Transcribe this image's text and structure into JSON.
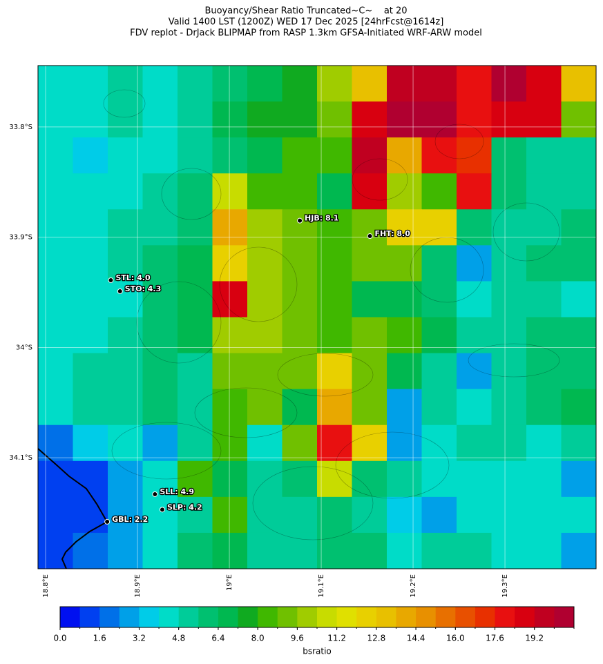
{
  "chart_data": {
    "type": "heatmap",
    "title": "Buoyancy/Shear Ratio Truncated~C~    at 20",
    "subtitle": "Valid 1400 LST (1200Z) WED 17 Dec 2025 [24hrFcst@1614z]",
    "subtitle2": "FDV replot - DrJack BLIPMAP from RASP 1.3km GFSA-Initiated WRF-ARW model",
    "xlim": [
      18.7917,
      19.3992
    ],
    "ylim": [
      33.7444,
      34.2006
    ],
    "xticks": [
      {
        "value": 18.8,
        "label": "18.8°E"
      },
      {
        "value": 18.9,
        "label": "18.9°E"
      },
      {
        "value": 19.0,
        "label": "19°E"
      },
      {
        "value": 19.1,
        "label": "19.1°E"
      },
      {
        "value": 19.2,
        "label": "19.2°E"
      },
      {
        "value": 19.3,
        "label": "19.3°E"
      }
    ],
    "yticks": [
      {
        "value": 33.8,
        "label": "33.8°S"
      },
      {
        "value": 33.9,
        "label": "33.9°S"
      },
      {
        "value": 34.0,
        "label": "34°S"
      },
      {
        "value": 34.1,
        "label": "34.1°S"
      }
    ],
    "grid": true,
    "z": [
      [
        4.4,
        4.4,
        5,
        4.4,
        5.5,
        6,
        7,
        7.5,
        10,
        13,
        19.5,
        19.5,
        18,
        20,
        19,
        13
      ],
      [
        4.4,
        4.4,
        5,
        4.4,
        5,
        6.5,
        7.5,
        7.5,
        9,
        19,
        20,
        20,
        18,
        19,
        19,
        9
      ],
      [
        4.4,
        3.5,
        4.4,
        4.4,
        5,
        6,
        7,
        8,
        8.5,
        19.5,
        14,
        18,
        17,
        6,
        5,
        5
      ],
      [
        4.4,
        4.4,
        4.8,
        5.5,
        6,
        11,
        8,
        8,
        7,
        19,
        10,
        8,
        18,
        6,
        5,
        5
      ],
      [
        4.4,
        4.4,
        5,
        5.5,
        6,
        14,
        10,
        9,
        8,
        9,
        12,
        12,
        6,
        5,
        5,
        6
      ],
      [
        4.4,
        4.4,
        5,
        6,
        7,
        12,
        10,
        9,
        8,
        9,
        9,
        6,
        3,
        5,
        6,
        6
      ],
      [
        4.4,
        4.4,
        4.8,
        6,
        7,
        19,
        10,
        9,
        8,
        7,
        7,
        6,
        4,
        5,
        5,
        4.4
      ],
      [
        4.4,
        4.4,
        5,
        6,
        7,
        10,
        10,
        9,
        8,
        9,
        8,
        7,
        5,
        5,
        6,
        6
      ],
      [
        4.4,
        5,
        5.5,
        6,
        5,
        9,
        9,
        9,
        12,
        9,
        7,
        5,
        3,
        5,
        6,
        6
      ],
      [
        4.4,
        5,
        5,
        6,
        5,
        8,
        9,
        7,
        14,
        9,
        3,
        5,
        4.4,
        5,
        6,
        7
      ],
      [
        2,
        3.5,
        4.4,
        3,
        5,
        8,
        4.4,
        9,
        18,
        12,
        3,
        4.4,
        5,
        5,
        4.4,
        5
      ],
      [
        1.2,
        1.2,
        3,
        4.4,
        8,
        7,
        5,
        6,
        11,
        6,
        5,
        4.4,
        4.4,
        4.4,
        4.4,
        3
      ],
      [
        1.2,
        1.2,
        3,
        4.4,
        5,
        8,
        5,
        5,
        6,
        5,
        3.5,
        3,
        4.4,
        4.4,
        4.4,
        4.4
      ],
      [
        1.2,
        2,
        3,
        4.4,
        6,
        7,
        5,
        5,
        6,
        6,
        4.4,
        5,
        5,
        4.4,
        4.4,
        3
      ]
    ],
    "stations": [
      {
        "label": "HJB: 8.1",
        "lon": 19.0767,
        "lat": 33.885
      },
      {
        "label": "FHT: 8.0",
        "lon": 19.153,
        "lat": 33.899
      },
      {
        "label": "STL: 4.0",
        "lon": 18.871,
        "lat": 33.939
      },
      {
        "label": "STO: 4.3",
        "lon": 18.881,
        "lat": 33.949
      },
      {
        "label": "SLL: 4.9",
        "lon": 18.919,
        "lat": 34.133
      },
      {
        "label": "SLP: 4.2",
        "lon": 18.927,
        "lat": 34.147
      },
      {
        "label": "GBL: 2.2",
        "lon": 18.867,
        "lat": 34.158
      }
    ],
    "colorbar": {
      "label": "bsratio",
      "clim": [
        0,
        20.8
      ],
      "colors": [
        "#0010f0",
        "#0040f0",
        "#0070e8",
        "#00a0e8",
        "#00cce8",
        "#00dcc8",
        "#00cc99",
        "#00c070",
        "#00b850",
        "#10aa20",
        "#40b800",
        "#70c000",
        "#a0cc00",
        "#c8dc00",
        "#e0e000",
        "#e8d000",
        "#e8c000",
        "#e8a800",
        "#e89000",
        "#e87000",
        "#e85000",
        "#e83000",
        "#e81010",
        "#d80010",
        "#c00020",
        "#b00030"
      ],
      "ticks": [
        {
          "value": 0,
          "label": "0.0"
        },
        1.6,
        3.2,
        4.8,
        6.4,
        {
          "value": 8,
          "label": "8.0"
        },
        9.6,
        11.2,
        12.8,
        14.4,
        {
          "value": 16,
          "label": "16.0"
        },
        17.6,
        19.2
      ]
    }
  }
}
